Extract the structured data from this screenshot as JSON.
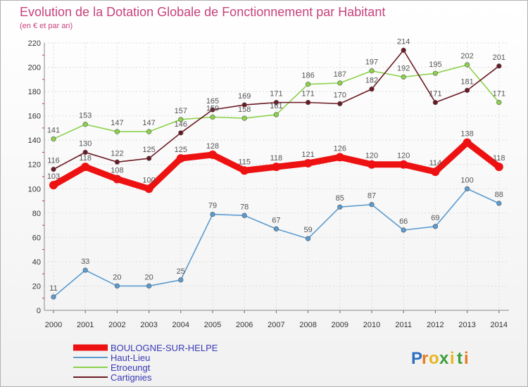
{
  "chart_data": {
    "type": "line",
    "title": "Evolution de la Dotation Globale de Fonctionnement par Habitant",
    "subtitle": "(en € et par an)",
    "xlabel": "",
    "ylabel": "",
    "ylim": [
      0,
      220
    ],
    "yticks": [
      0,
      20,
      40,
      60,
      80,
      100,
      120,
      140,
      160,
      180,
      200,
      220
    ],
    "categories": [
      "2000",
      "2001",
      "2002",
      "2003",
      "2004",
      "2005",
      "2006",
      "2007",
      "2008",
      "2009",
      "2010",
      "2011",
      "2012",
      "2013",
      "2014"
    ],
    "grid": true,
    "legend_position": "bottom-left",
    "series": [
      {
        "name": "Etroeungt",
        "color": "#8bd24a",
        "values": [
          141,
          153,
          147,
          147,
          157,
          159,
          158,
          161,
          186,
          187,
          197,
          192,
          195,
          202,
          171
        ]
      },
      {
        "name": "Cartignies",
        "color": "#6b1a24",
        "values": [
          116,
          130,
          122,
          125,
          146,
          165,
          169,
          171,
          171,
          170,
          182,
          214,
          171,
          181,
          201
        ]
      },
      {
        "name": "Haut-Lieu",
        "color": "#5a9bd0",
        "values": [
          11,
          33,
          20,
          20,
          25,
          79,
          78,
          67,
          59,
          85,
          87,
          66,
          69,
          100,
          88
        ]
      },
      {
        "name": "BOULOGNE-SUR-HELPE",
        "color": "#ee1111",
        "values": [
          103,
          118,
          108,
          100,
          125,
          128,
          115,
          118,
          121,
          126,
          120,
          120,
          114,
          138,
          118
        ]
      }
    ]
  },
  "legend": {
    "items": [
      "BOULOGNE-SUR-HELPE",
      "Haut-Lieu",
      "Etroeungt",
      "Cartignies"
    ]
  },
  "brand": {
    "letters": [
      "P",
      "r",
      "o",
      "x",
      "i",
      "t",
      "i"
    ],
    "colors": [
      "#2b6fc2",
      "#e87a1c",
      "#e8b61c",
      "#3a9e3a",
      "#e8b61c",
      "#3a9e3a",
      "#e87a1c"
    ]
  }
}
